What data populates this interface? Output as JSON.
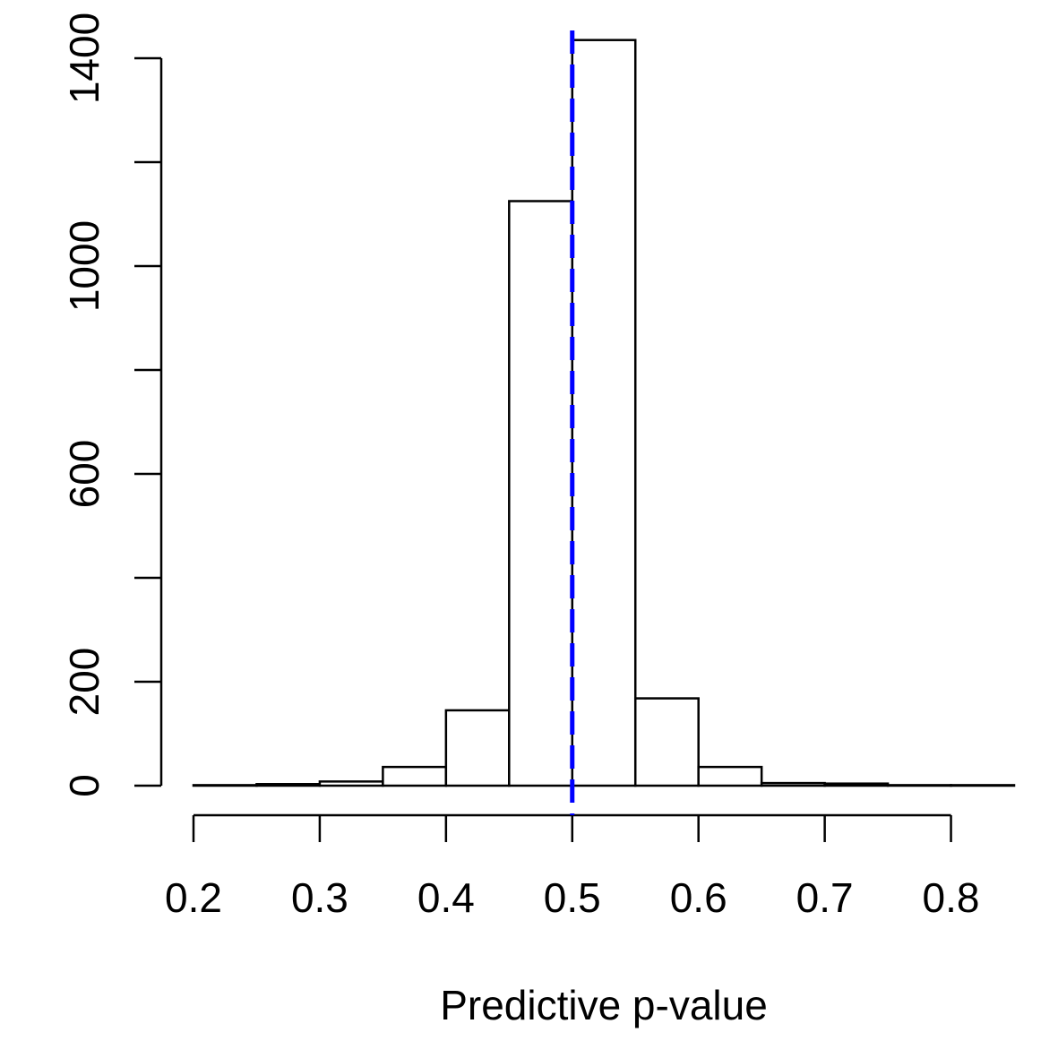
{
  "chart_data": {
    "type": "bar",
    "subtype": "histogram",
    "title": "",
    "xlabel": "Predictive p-value",
    "ylabel": "",
    "bin_edges": [
      0.2,
      0.25,
      0.3,
      0.35,
      0.4,
      0.45,
      0.5,
      0.55,
      0.6,
      0.65,
      0.7,
      0.75,
      0.8,
      0.85
    ],
    "counts": [
      1,
      3,
      8,
      36,
      145,
      1125,
      1435,
      168,
      36,
      5,
      4,
      1,
      1
    ],
    "xlim": [
      0.2,
      0.85
    ],
    "ylim": [
      0,
      1400
    ],
    "x_ticks": [
      0.2,
      0.3,
      0.4,
      0.5,
      0.6,
      0.7,
      0.8
    ],
    "x_tick_labels": [
      "0.2",
      "0.3",
      "0.4",
      "0.5",
      "0.6",
      "0.7",
      "0.8"
    ],
    "y_ticks": [
      0,
      200,
      400,
      600,
      800,
      1000,
      1200,
      1400
    ],
    "y_tick_labels": [
      "0",
      "200",
      "",
      "600",
      "",
      "1000",
      "",
      "1400"
    ],
    "reference_line": {
      "x": 0.5,
      "color": "#0000ff",
      "style": "dashed"
    },
    "bar_fill": "#ffffff",
    "bar_stroke": "#000000",
    "grid": false,
    "legend": "none"
  }
}
